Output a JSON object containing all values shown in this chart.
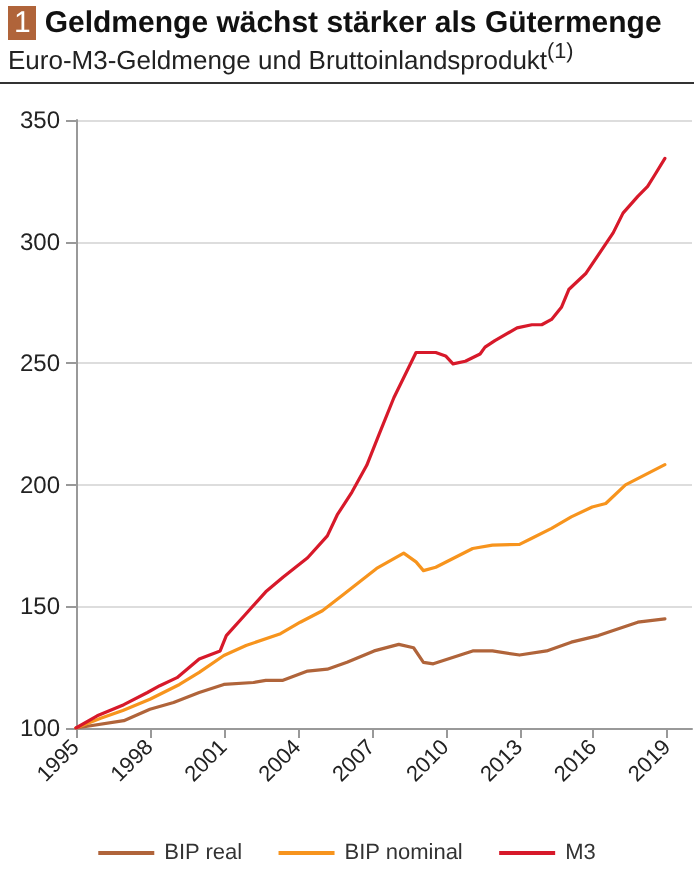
{
  "chart_data": {
    "type": "line",
    "title": "Geldmenge wächst stärker als Gütermenge",
    "subtitle": "Euro-M3-Geldmenge und Bruttoinlandsprodukt$^{(1)}$",
    "annotations": [
      "1"
    ],
    "xlim": [
      1995,
      2020
    ],
    "xticks": [
      1995,
      1998,
      2001,
      2004,
      2007,
      2010,
      2013,
      2016,
      2019
    ],
    "ylim": [
      100,
      350
    ],
    "yticks": [
      100,
      150,
      200,
      250,
      300,
      350
    ],
    "grid": "y",
    "legend": "bottom",
    "marker": "none",
    "line_style": "solid",
    "series": [
      {
        "name": "BIP real",
        "color": "#b0643a",
        "x": [
          1995,
          1996.94,
          1998,
          1998.96,
          2000,
          2001,
          2002.2,
          2002.7,
          2003.4,
          2004.4,
          2005.2,
          2006,
          2007.1,
          2008.1,
          2008.7,
          2009.1,
          2009.5,
          2011.1,
          2011.9,
          2013,
          2014.1,
          2015.1,
          2016.2,
          2017.8,
          2018.9
        ],
        "values": [
          100,
          103,
          107.7,
          110.5,
          114.6,
          117.9,
          118.7,
          119.6,
          119.6,
          123.4,
          124.2,
          127,
          131.7,
          134.4,
          133,
          127,
          126.4,
          131.7,
          131.7,
          130,
          131.7,
          135.3,
          138,
          143.5,
          144.9
        ]
      },
      {
        "name": "BIP nominal",
        "color": "#f7941d",
        "x": [
          1995,
          1996,
          1996.9,
          1998,
          1999.2,
          2000,
          2001,
          2001.9,
          2003.3,
          2004.1,
          2005,
          2005.8,
          2006.5,
          2007.2,
          2008.3,
          2008.8,
          2009.1,
          2009.6,
          2010.3,
          2011.1,
          2011.9,
          2013,
          2013.5,
          2014.3,
          2015.1,
          2015.95,
          2016.5,
          2017.3,
          2018.9
        ],
        "values": [
          100,
          104,
          107.2,
          111.8,
          117.9,
          122.9,
          129.8,
          133.9,
          138.8,
          143.5,
          148.2,
          154.5,
          160,
          165.6,
          171.9,
          168.3,
          164.7,
          166.1,
          169.7,
          173.8,
          175.2,
          175.5,
          178,
          182.1,
          186.8,
          190.9,
          192.3,
          200,
          208.3
        ]
      },
      {
        "name": "M3",
        "color": "#d7192a",
        "x": [
          1995,
          1995.86,
          1996.94,
          1997.9,
          1998.4,
          1999.1,
          2000,
          2000.85,
          2001.1,
          2001.9,
          2002.7,
          2003.4,
          2004.4,
          2005.2,
          2005.6,
          2006.2,
          2006.8,
          2007.3,
          2007.9,
          2008.8,
          2009.6,
          2010,
          2010.3,
          2010.8,
          2011.4,
          2011.6,
          2012,
          2012.9,
          2013.5,
          2013.9,
          2014.3,
          2014.7,
          2015,
          2015.7,
          2016.8,
          2017.2,
          2017.8,
          2018.2,
          2018.5,
          2018.9
        ],
        "values": [
          100,
          105,
          109.6,
          114.6,
          117.4,
          120.7,
          128.4,
          131.7,
          138,
          147,
          156,
          162,
          170,
          179,
          187.6,
          197,
          208,
          220.7,
          235.8,
          254.4,
          254.4,
          253,
          249.7,
          250.8,
          253.8,
          256.6,
          259.3,
          264.5,
          265.8,
          265.8,
          268,
          273,
          280.3,
          287,
          303.6,
          311.7,
          318.6,
          322.7,
          327.6,
          334.2
        ]
      }
    ]
  }
}
